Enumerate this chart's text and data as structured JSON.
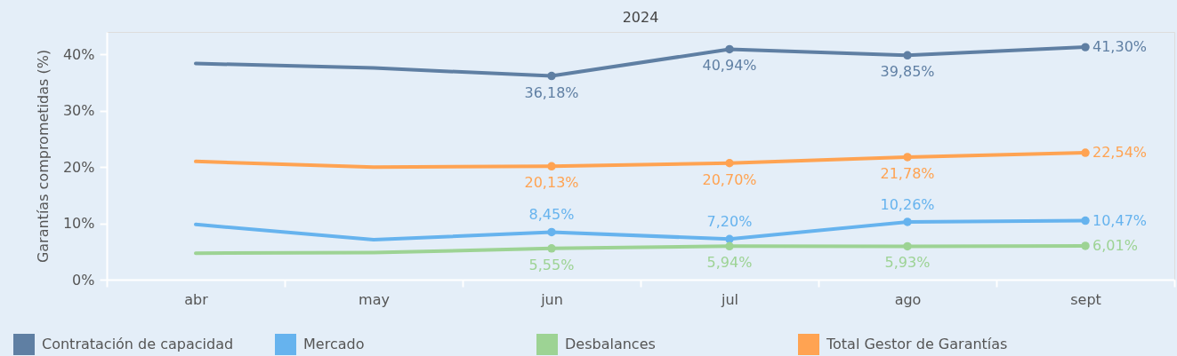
{
  "chart_data": {
    "type": "line",
    "title": "2024",
    "ylabel": "Garantías comprometidas (%)",
    "categories": [
      "abr",
      "may",
      "jun",
      "jul",
      "ago",
      "sept"
    ],
    "series": [
      {
        "name": "Contratación de capacidad",
        "color": "#5f7fa3",
        "values": [
          38.4,
          37.6,
          36.18,
          40.94,
          39.85,
          41.3
        ],
        "value_labels": [
          null,
          null,
          "36,18%",
          "40,94%",
          "39,85%",
          "41,30%"
        ]
      },
      {
        "name": "Mercado",
        "color": "#66b3ee",
        "values": [
          9.8,
          7.1,
          8.45,
          7.2,
          10.26,
          10.47
        ],
        "value_labels": [
          null,
          null,
          "8,45%",
          "7,20%",
          "10,26%",
          "10,47%"
        ]
      },
      {
        "name": "Desbalances",
        "color": "#9dd394",
        "values": [
          4.7,
          4.8,
          5.55,
          5.94,
          5.93,
          6.01
        ],
        "value_labels": [
          null,
          null,
          "5,55%",
          "5,94%",
          "5,93%",
          "6,01%"
        ]
      },
      {
        "name": "Total Gestor de Garantías",
        "color": "#ffa352",
        "values": [
          21.0,
          20.0,
          20.13,
          20.7,
          21.78,
          22.54
        ],
        "value_labels": [
          null,
          null,
          "20,13%",
          "20,70%",
          "21,78%",
          "22,54%"
        ]
      }
    ],
    "ylim": [
      0,
      44
    ],
    "yticks": [
      {
        "value": 0,
        "label": "0%"
      },
      {
        "value": 10,
        "label": "10%"
      },
      {
        "value": 20,
        "label": "20%"
      },
      {
        "value": 30,
        "label": "30%"
      },
      {
        "value": 40,
        "label": "40%"
      }
    ],
    "legend": "bottom",
    "marker": "circle",
    "line_style": "solid"
  }
}
